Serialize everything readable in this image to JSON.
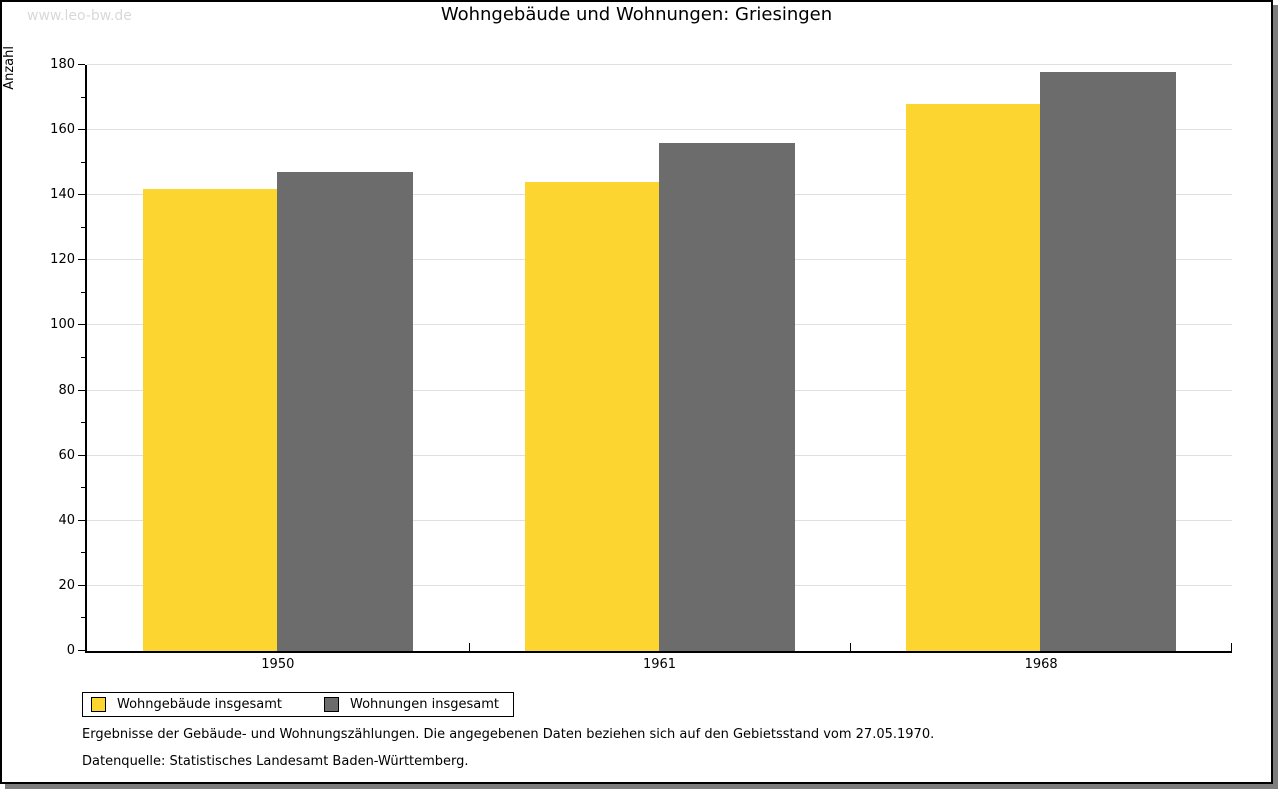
{
  "header": {
    "watermark": "www.leo-bw.de",
    "title": "Wohngebäude und Wohnungen: Griesingen"
  },
  "chart_data": {
    "type": "bar",
    "title": "Wohngebäude und Wohnungen: Griesingen",
    "categories": [
      "1950",
      "1961",
      "1968"
    ],
    "series": [
      {
        "name": "Wohngebäude insgesamt",
        "color": "#FCD530",
        "values": [
          142,
          144,
          168
        ]
      },
      {
        "name": "Wohnungen insgesamt",
        "color": "#6C6C6C",
        "values": [
          147,
          156,
          178
        ]
      }
    ],
    "xlabel": "",
    "ylabel": "Anzahl",
    "ylim": [
      0,
      180
    ],
    "ytick_step": 20,
    "yminor_step": 10,
    "grid": true,
    "gridline_color": "#dfdfdf",
    "legend_position": "bottom-left"
  },
  "footer": {
    "line1": "Ergebnisse der Gebäude- und Wohnungszählungen. Die angegebenen Daten beziehen sich auf den Gebietsstand vom 27.05.1970.",
    "line2": "Datenquelle: Statistisches Landesamt Baden-Württemberg."
  }
}
